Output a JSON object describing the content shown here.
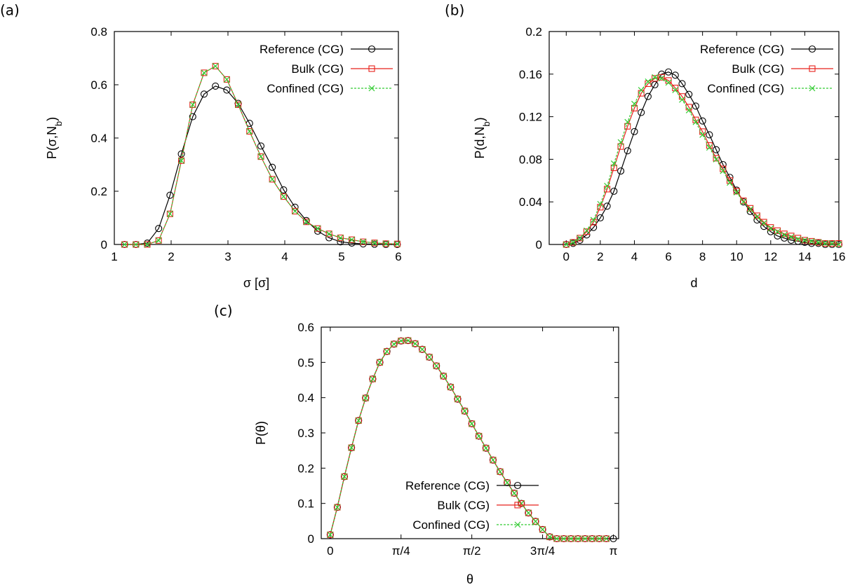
{
  "colors": {
    "reference": "#000000",
    "bulk": "#e8201a",
    "confined": "#33cc33"
  },
  "series_names": [
    "Reference (CG)",
    "Bulk (CG)",
    "Confined (CG)"
  ],
  "chart_data": [
    {
      "panel_label": "(a)",
      "type": "line",
      "xlabel": "σ [σ]",
      "ylabel": "P(σ,N_b)",
      "xlim": [
        1,
        6
      ],
      "ylim": [
        0,
        0.8
      ],
      "xticks": [
        1,
        2,
        3,
        4,
        5,
        6
      ],
      "xticklabels": [
        "1",
        "2",
        "3",
        "4",
        "5",
        "6"
      ],
      "yticks": [
        0,
        0.2,
        0.4,
        0.6,
        0.8
      ],
      "yticklabels": [
        "0",
        "0.2",
        "0.4",
        "0.6",
        "0.8"
      ],
      "legend_position": "top-right",
      "series": [
        {
          "name": "Reference (CG)",
          "marker": "circle",
          "x": [
            1.18,
            1.38,
            1.58,
            1.78,
            1.98,
            2.18,
            2.38,
            2.58,
            2.78,
            2.98,
            3.18,
            3.38,
            3.58,
            3.78,
            3.98,
            4.18,
            4.38,
            4.58,
            4.78,
            4.98,
            5.18,
            5.38,
            5.58,
            5.78,
            5.98
          ],
          "y": [
            0,
            0,
            0.005,
            0.06,
            0.185,
            0.34,
            0.48,
            0.565,
            0.595,
            0.58,
            0.53,
            0.455,
            0.37,
            0.29,
            0.205,
            0.14,
            0.09,
            0.05,
            0.025,
            0.01,
            0.005,
            0.002,
            0.001,
            0,
            0
          ]
        },
        {
          "name": "Bulk (CG)",
          "marker": "square",
          "x": [
            1.18,
            1.38,
            1.58,
            1.78,
            1.98,
            2.18,
            2.38,
            2.58,
            2.78,
            2.98,
            3.18,
            3.38,
            3.58,
            3.78,
            3.98,
            4.18,
            4.38,
            4.58,
            4.78,
            4.98,
            5.18,
            5.38,
            5.58,
            5.78,
            5.98
          ],
          "y": [
            0,
            0,
            0,
            0.015,
            0.115,
            0.315,
            0.525,
            0.645,
            0.67,
            0.62,
            0.525,
            0.425,
            0.33,
            0.245,
            0.18,
            0.125,
            0.085,
            0.06,
            0.04,
            0.025,
            0.018,
            0.01,
            0.006,
            0.003,
            0.002
          ]
        },
        {
          "name": "Confined (CG)",
          "marker": "cross",
          "x": [
            1.18,
            1.38,
            1.58,
            1.78,
            1.98,
            2.18,
            2.38,
            2.58,
            2.78,
            2.98,
            3.18,
            3.38,
            3.58,
            3.78,
            3.98,
            4.18,
            4.38,
            4.58,
            4.78,
            4.98,
            5.18,
            5.38,
            5.58,
            5.78,
            5.98
          ],
          "y": [
            0,
            0,
            0,
            0.015,
            0.115,
            0.315,
            0.525,
            0.645,
            0.67,
            0.62,
            0.525,
            0.425,
            0.33,
            0.245,
            0.18,
            0.125,
            0.085,
            0.06,
            0.04,
            0.025,
            0.018,
            0.01,
            0.006,
            0.003,
            0.002
          ]
        }
      ]
    },
    {
      "panel_label": "(b)",
      "type": "line",
      "xlabel": "d",
      "ylabel": "P(d,N_b)",
      "xlim": [
        -1,
        16
      ],
      "ylim": [
        0,
        0.2
      ],
      "xticks": [
        0,
        2,
        4,
        6,
        8,
        10,
        12,
        14,
        16
      ],
      "xticklabels": [
        "0",
        "2",
        "4",
        "6",
        "8",
        "10",
        "12",
        "14",
        "16"
      ],
      "yticks": [
        0,
        0.04,
        0.08,
        0.12,
        0.16,
        0.2
      ],
      "yticklabels": [
        "0",
        "0.04",
        "0.08",
        "0.12",
        "0.16",
        "0.2"
      ],
      "legend_position": "top-right",
      "series": [
        {
          "name": "Reference (CG)",
          "marker": "circle",
          "x": [
            0,
            0.4,
            0.8,
            1.2,
            1.6,
            2,
            2.4,
            2.8,
            3.2,
            3.6,
            4,
            4.4,
            4.8,
            5.2,
            5.6,
            6,
            6.4,
            6.8,
            7.2,
            7.6,
            8,
            8.4,
            8.8,
            9.2,
            9.6,
            10,
            10.4,
            10.8,
            11.2,
            11.6,
            12,
            12.4,
            12.8,
            13.2,
            13.6,
            14,
            14.4,
            14.8,
            15.2,
            15.6,
            16
          ],
          "y": [
            0,
            0.001,
            0.004,
            0.009,
            0.016,
            0.025,
            0.036,
            0.05,
            0.069,
            0.088,
            0.106,
            0.124,
            0.139,
            0.15,
            0.16,
            0.162,
            0.159,
            0.151,
            0.141,
            0.13,
            0.116,
            0.103,
            0.089,
            0.075,
            0.063,
            0.051,
            0.04,
            0.031,
            0.023,
            0.017,
            0.012,
            0.008,
            0.006,
            0.004,
            0.003,
            0.002,
            0.001,
            0.001,
            0,
            0,
            0
          ]
        },
        {
          "name": "Bulk (CG)",
          "marker": "square",
          "x": [
            0,
            0.4,
            0.8,
            1.2,
            1.6,
            2,
            2.4,
            2.8,
            3.2,
            3.6,
            4,
            4.4,
            4.8,
            5.2,
            5.6,
            6,
            6.4,
            6.8,
            7.2,
            7.6,
            8,
            8.4,
            8.8,
            9.2,
            9.6,
            10,
            10.4,
            10.8,
            11.2,
            11.6,
            12,
            12.4,
            12.8,
            13.2,
            13.6,
            14,
            14.4,
            14.8,
            15.2,
            15.6,
            16
          ],
          "y": [
            0,
            0.002,
            0.006,
            0.012,
            0.021,
            0.035,
            0.052,
            0.072,
            0.092,
            0.111,
            0.128,
            0.142,
            0.151,
            0.156,
            0.157,
            0.154,
            0.147,
            0.139,
            0.129,
            0.117,
            0.106,
            0.093,
            0.081,
            0.071,
            0.06,
            0.05,
            0.041,
            0.034,
            0.027,
            0.021,
            0.016,
            0.013,
            0.01,
            0.008,
            0.006,
            0.004,
            0.003,
            0.002,
            0.001,
            0.001,
            0.001
          ]
        },
        {
          "name": "Confined (CG)",
          "marker": "cross",
          "x": [
            0,
            0.4,
            0.8,
            1.2,
            1.6,
            2,
            2.4,
            2.8,
            3.2,
            3.6,
            4,
            4.4,
            4.8,
            5.2,
            5.6,
            6,
            6.4,
            6.8,
            7.2,
            7.6,
            8,
            8.4,
            8.8,
            9.2,
            9.6,
            10,
            10.4,
            10.8,
            11.2,
            11.6,
            12,
            12.4,
            12.8,
            13.2,
            13.6,
            14,
            14.4,
            14.8,
            15.2,
            15.6,
            16
          ],
          "y": [
            0,
            0.002,
            0.006,
            0.013,
            0.023,
            0.038,
            0.055,
            0.076,
            0.096,
            0.115,
            0.132,
            0.145,
            0.153,
            0.157,
            0.156,
            0.152,
            0.145,
            0.136,
            0.126,
            0.115,
            0.103,
            0.091,
            0.08,
            0.069,
            0.058,
            0.049,
            0.04,
            0.033,
            0.026,
            0.02,
            0.015,
            0.012,
            0.009,
            0.007,
            0.005,
            0.004,
            0.003,
            0.002,
            0.001,
            0.001,
            0
          ]
        }
      ]
    },
    {
      "panel_label": "(c)",
      "type": "line",
      "xlabel": "θ",
      "ylabel": "P(θ)",
      "xlim": [
        -0.1,
        3.2
      ],
      "ylim": [
        0,
        0.6
      ],
      "xticks": [
        0,
        0.785398,
        1.570796,
        2.356194,
        3.141593
      ],
      "xticklabels": [
        "0",
        "π/4",
        "π/2",
        "3π/4",
        "π"
      ],
      "yticks": [
        0,
        0.1,
        0.2,
        0.3,
        0.4,
        0.5,
        0.6
      ],
      "yticklabels": [
        "0",
        "0.1",
        "0.2",
        "0.3",
        "0.4",
        "0.5",
        "0.6"
      ],
      "legend_position": "bottom-center",
      "series": [
        {
          "name": "Reference (CG)",
          "marker": "circle",
          "x": [
            0,
            0.0785,
            0.157,
            0.2356,
            0.3142,
            0.3927,
            0.4712,
            0.5498,
            0.6283,
            0.7069,
            0.7854,
            0.8639,
            0.9425,
            1.021,
            1.0996,
            1.1781,
            1.2566,
            1.3352,
            1.4137,
            1.4923,
            1.5708,
            1.6493,
            1.7279,
            1.8064,
            1.885,
            1.9635,
            2.042,
            2.1206,
            2.1991,
            2.2777,
            2.3562,
            2.4347,
            2.5133,
            2.5918,
            2.6704,
            2.7489,
            2.8274,
            2.906,
            2.9845,
            3.063,
            3.1416
          ],
          "y": [
            0.011,
            0.089,
            0.176,
            0.258,
            0.335,
            0.399,
            0.453,
            0.5,
            0.531,
            0.552,
            0.561,
            0.562,
            0.553,
            0.537,
            0.515,
            0.49,
            0.461,
            0.43,
            0.396,
            0.362,
            0.326,
            0.291,
            0.257,
            0.223,
            0.19,
            0.159,
            0.129,
            0.1,
            0.073,
            0.049,
            0.026,
            0.005,
            0,
            0,
            0,
            0,
            0,
            0,
            0,
            0,
            0
          ]
        },
        {
          "name": "Bulk (CG)",
          "marker": "square",
          "x": [
            0,
            0.0785,
            0.157,
            0.2356,
            0.3142,
            0.3927,
            0.4712,
            0.5498,
            0.6283,
            0.7069,
            0.7854,
            0.8639,
            0.9425,
            1.021,
            1.0996,
            1.1781,
            1.2566,
            1.3352,
            1.4137,
            1.4923,
            1.5708,
            1.6493,
            1.7279,
            1.8064,
            1.885,
            1.9635,
            2.042,
            2.1206,
            2.1991,
            2.2777,
            2.3562,
            2.4347,
            2.5133,
            2.5918,
            2.6704,
            2.7489,
            2.8274,
            2.906,
            2.9845,
            3.063
          ],
          "y": [
            0.011,
            0.089,
            0.176,
            0.258,
            0.335,
            0.399,
            0.453,
            0.5,
            0.531,
            0.552,
            0.561,
            0.562,
            0.553,
            0.537,
            0.515,
            0.49,
            0.461,
            0.43,
            0.396,
            0.362,
            0.326,
            0.291,
            0.257,
            0.223,
            0.19,
            0.159,
            0.129,
            0.1,
            0.073,
            0.049,
            0.026,
            0.005,
            0,
            0,
            0,
            0,
            0,
            0,
            0,
            0
          ]
        },
        {
          "name": "Confined (CG)",
          "marker": "cross",
          "x": [
            0,
            0.0785,
            0.157,
            0.2356,
            0.3142,
            0.3927,
            0.4712,
            0.5498,
            0.6283,
            0.7069,
            0.7854,
            0.8639,
            0.9425,
            1.021,
            1.0996,
            1.1781,
            1.2566,
            1.3352,
            1.4137,
            1.4923,
            1.5708,
            1.6493,
            1.7279,
            1.8064,
            1.885,
            1.9635,
            2.042,
            2.1206,
            2.1991,
            2.2777,
            2.3562,
            2.4347,
            2.5133,
            2.5918,
            2.6704,
            2.7489,
            2.8274,
            2.906,
            2.9845,
            3.063
          ],
          "y": [
            0.011,
            0.089,
            0.176,
            0.258,
            0.335,
            0.399,
            0.453,
            0.5,
            0.531,
            0.552,
            0.561,
            0.562,
            0.553,
            0.537,
            0.515,
            0.49,
            0.461,
            0.43,
            0.396,
            0.362,
            0.326,
            0.291,
            0.257,
            0.223,
            0.19,
            0.159,
            0.129,
            0.1,
            0.073,
            0.049,
            0.026,
            0.005,
            0,
            0,
            0,
            0,
            0,
            0,
            0,
            0
          ]
        }
      ]
    }
  ]
}
